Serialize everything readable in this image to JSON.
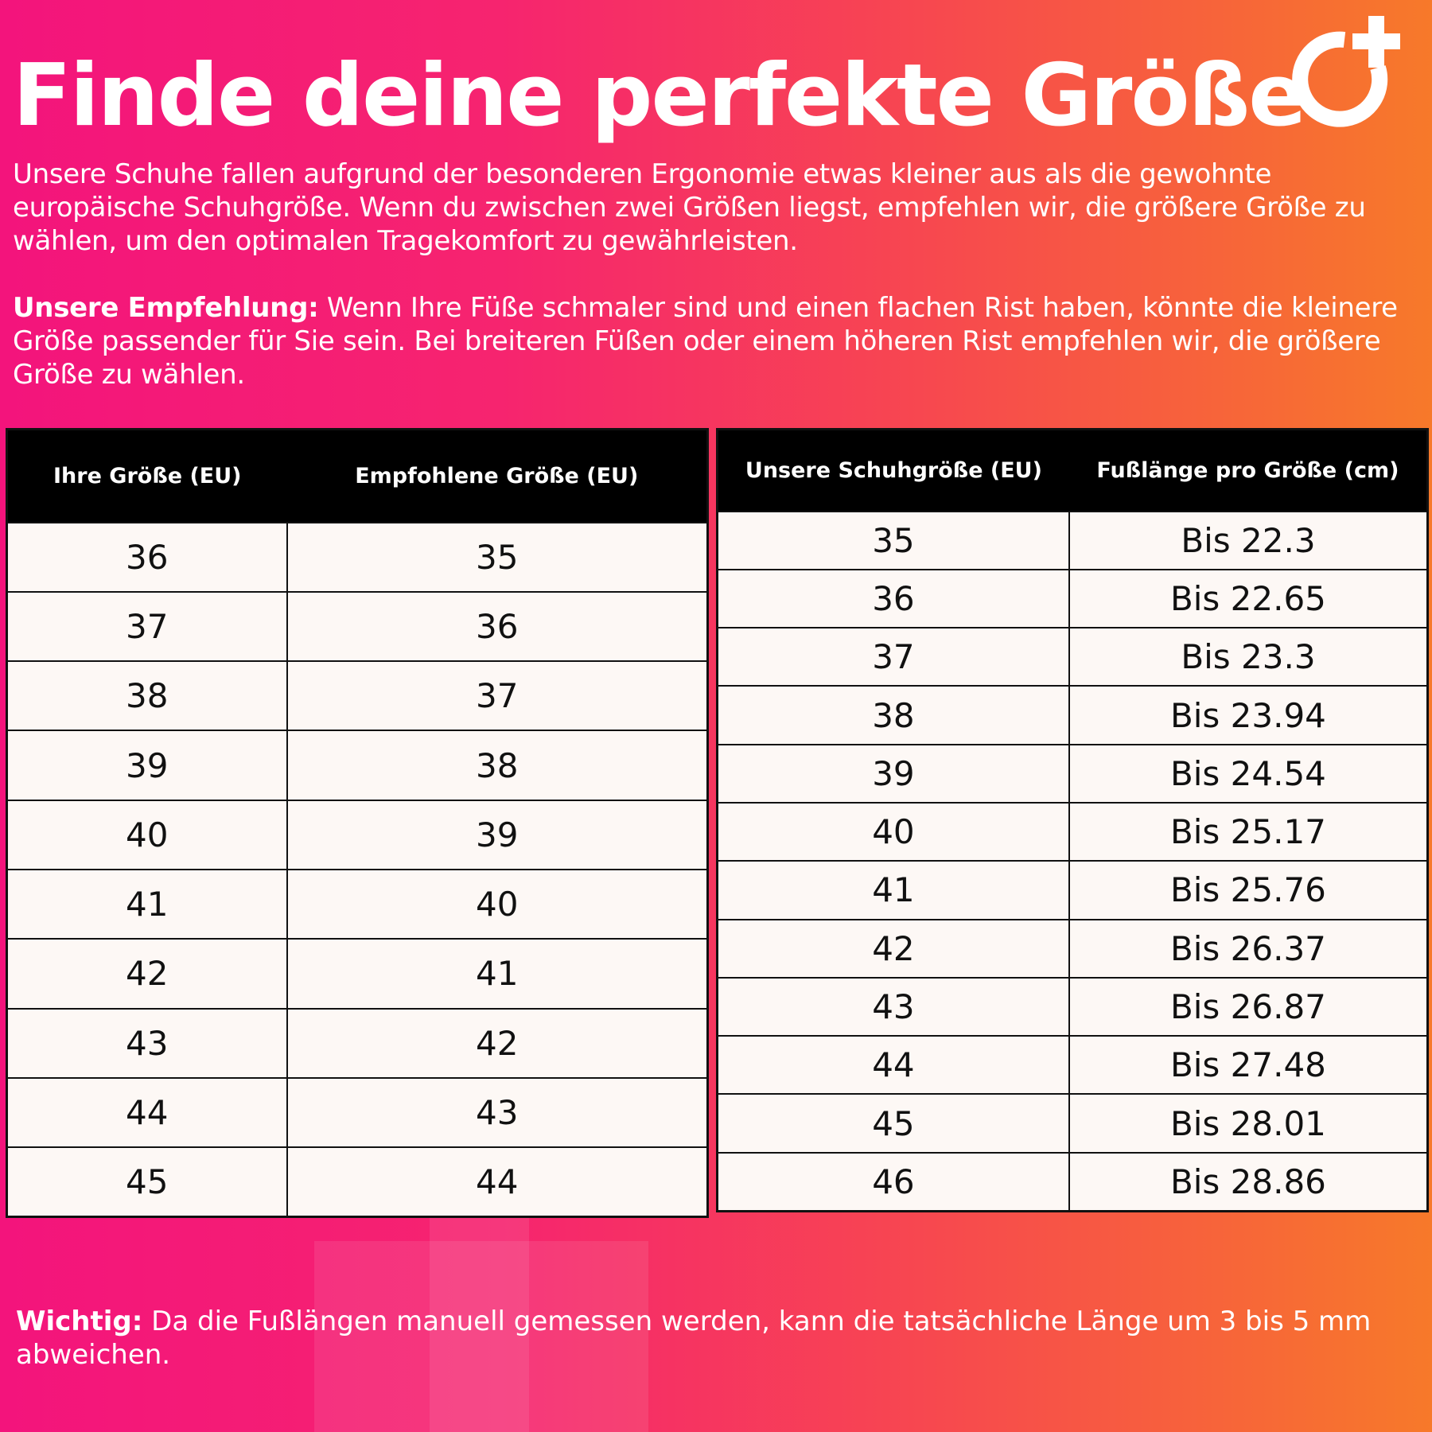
{
  "title": "Finde deine perfekte Größe",
  "intro": "Unsere Schuhe fallen aufgrund der besonderen Ergonomie etwas kleiner aus als die gewohnte europäische Schuhgröße. Wenn du zwischen zwei Größen liegst, empfehlen wir, die größere Größe zu wählen, um den optimalen Tragekomfort zu gewährleisten.",
  "recommendation": {
    "label": "Unsere Empfehlung:",
    "text": " Wenn Ihre Füße schmaler sind und einen flachen Rist haben, könnte die kleinere Größe passender für Sie sein. Bei breiteren Füßen oder einem höheren Rist empfehlen wir, die größere Größe zu wählen."
  },
  "table_conversion": {
    "headers": [
      "Ihre Größe (EU)",
      "Empfohlene Größe (EU)"
    ],
    "rows": [
      [
        "36",
        "35"
      ],
      [
        "37",
        "36"
      ],
      [
        "38",
        "37"
      ],
      [
        "39",
        "38"
      ],
      [
        "40",
        "39"
      ],
      [
        "41",
        "40"
      ],
      [
        "42",
        "41"
      ],
      [
        "43",
        "42"
      ],
      [
        "44",
        "43"
      ],
      [
        "45",
        "44"
      ]
    ]
  },
  "table_lengths": {
    "headers": [
      "Unsere Schuhgröße (EU)",
      "Fußlänge pro Größe (cm)"
    ],
    "rows": [
      [
        "35",
        "Bis 22.3"
      ],
      [
        "36",
        "Bis 22.65"
      ],
      [
        "37",
        "Bis 23.3"
      ],
      [
        "38",
        "Bis 23.94"
      ],
      [
        "39",
        "Bis 24.54"
      ],
      [
        "40",
        "Bis 25.17"
      ],
      [
        "41",
        "Bis 25.76"
      ],
      [
        "42",
        "Bis 26.37"
      ],
      [
        "43",
        "Bis 26.87"
      ],
      [
        "44",
        "Bis 27.48"
      ],
      [
        "45",
        "Bis 28.01"
      ],
      [
        "46",
        "Bis 28.86"
      ]
    ]
  },
  "note": {
    "label": "Wichtig:",
    "text": " Da die Fußlängen manuell gemessen werden, kann die tatsächliche Länge um 3 bis 5 mm abweichen."
  },
  "logo_icon": "circle-plus-logo",
  "colors": {
    "gradient_left": "#f3147c",
    "gradient_right": "#f7792a",
    "table_header": "#000000",
    "table_body": "#fdf8f5"
  }
}
